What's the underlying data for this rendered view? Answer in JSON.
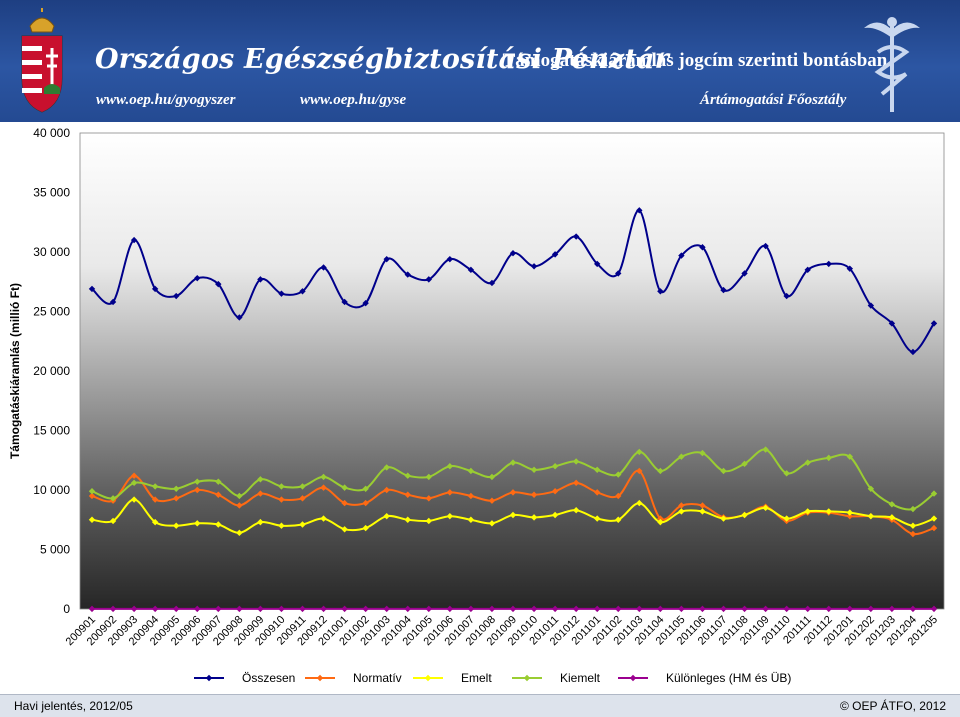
{
  "header": {
    "org_name": "Országos Egészségbiztosítási Pénztár",
    "report_title": "Támogatáskiáramlás jogcím szerinti bontásban",
    "url_1": "www.oep.hu/gyogyszer",
    "url_2": "www.oep.hu/gyse",
    "department": "Ártámogatási Főosztály"
  },
  "footer": {
    "left_text": "Havi jelentés, 2012/05",
    "right_text": "© OEP ÁTFO, 2012"
  },
  "chart_data": {
    "type": "line",
    "ylabel": "Támogatáskiáramlás (millió Ft)",
    "ylim": [
      0,
      40000
    ],
    "yticks": [
      0,
      5000,
      10000,
      15000,
      20000,
      25000,
      30000,
      35000,
      40000
    ],
    "ytick_labels": [
      "0",
      "5 000",
      "10 000",
      "15 000",
      "20 000",
      "25 000",
      "30 000",
      "35 000",
      "40 000"
    ],
    "grid": false,
    "legend_position": "bottom",
    "background": "gradient-white-to-dark",
    "x": [
      "200901",
      "200902",
      "200903",
      "200904",
      "200905",
      "200906",
      "200907",
      "200908",
      "200909",
      "200910",
      "200911",
      "200912",
      "201001",
      "201002",
      "201003",
      "201004",
      "201005",
      "201006",
      "201007",
      "201008",
      "201009",
      "201010",
      "201011",
      "201012",
      "201101",
      "201102",
      "201103",
      "201104",
      "201105",
      "201106",
      "201107",
      "201108",
      "201109",
      "201110",
      "201111",
      "201112",
      "201201",
      "201202",
      "201203",
      "201204",
      "201205"
    ],
    "series": [
      {
        "name": "Összesen",
        "color": "#00008b",
        "values": [
          26900,
          25800,
          31000,
          26900,
          26300,
          27800,
          27300,
          24500,
          27700,
          26500,
          26700,
          28700,
          25800,
          25700,
          29400,
          28100,
          27700,
          29400,
          28500,
          27400,
          29900,
          28800,
          29800,
          31300,
          29000,
          28200,
          33500,
          26700,
          29700,
          30400,
          26800,
          28200,
          30500,
          26300,
          28500,
          29000,
          28600,
          25500,
          24000,
          21600,
          24000
        ]
      },
      {
        "name": "Normatív",
        "color": "#ff6a13",
        "values": [
          9500,
          9100,
          11200,
          9200,
          9300,
          10000,
          9600,
          8700,
          9700,
          9200,
          9300,
          10200,
          8900,
          8900,
          10000,
          9600,
          9300,
          9800,
          9500,
          9100,
          9800,
          9600,
          9900,
          10600,
          9800,
          9500,
          11600,
          7600,
          8700,
          8700,
          7700,
          7900,
          8600,
          7400,
          8100,
          8100,
          7800,
          7800,
          7500,
          6300,
          6800
        ]
      },
      {
        "name": "Emelt",
        "color": "#ffff00",
        "values": [
          7500,
          7400,
          9200,
          7300,
          7000,
          7200,
          7100,
          6400,
          7300,
          7000,
          7100,
          7600,
          6700,
          6800,
          7800,
          7500,
          7400,
          7800,
          7500,
          7200,
          7900,
          7700,
          7900,
          8300,
          7600,
          7500,
          8900,
          7300,
          8200,
          8200,
          7600,
          7900,
          8500,
          7600,
          8200,
          8200,
          8100,
          7800,
          7700,
          7000,
          7600
        ]
      },
      {
        "name": "Kiemelt",
        "color": "#9acd32",
        "values": [
          9900,
          9300,
          10600,
          10300,
          10100,
          10700,
          10700,
          9500,
          10900,
          10300,
          10300,
          11100,
          10200,
          10100,
          11900,
          11200,
          11100,
          12000,
          11600,
          11100,
          12300,
          11700,
          12000,
          12400,
          11700,
          11300,
          13200,
          11600,
          12800,
          13100,
          11600,
          12200,
          13400,
          11400,
          12300,
          12700,
          12800,
          10100,
          8800,
          8400,
          9700
        ]
      },
      {
        "name": "Különleges (HM és ÜB)",
        "color": "#9b008f",
        "values": [
          10,
          10,
          10,
          10,
          10,
          10,
          10,
          10,
          10,
          10,
          10,
          10,
          10,
          10,
          10,
          10,
          10,
          10,
          10,
          10,
          10,
          10,
          10,
          10,
          10,
          10,
          10,
          10,
          10,
          10,
          10,
          10,
          10,
          10,
          10,
          10,
          10,
          10,
          10,
          10,
          10
        ]
      }
    ]
  }
}
